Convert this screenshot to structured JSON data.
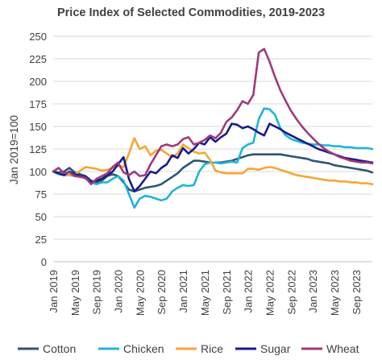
{
  "chart_data": {
    "type": "line",
    "title": "Price Index of Selected Commodities, 2019-2023",
    "ylabel": "Jan 2019=100",
    "xlabel": "",
    "ylim": [
      0,
      250
    ],
    "y_ticks": [
      "0",
      "25",
      "50",
      "75",
      "100",
      "125",
      "150",
      "175",
      "200",
      "225",
      "250"
    ],
    "x_ticks": [
      "Jan 2019",
      "May 2019",
      "Sep 2019",
      "Jan 2020",
      "May 2020",
      "Sep 2020",
      "Jan 2021",
      "May 2021",
      "Sep 2021",
      "Jan 2022",
      "May 2022",
      "Sep 2022",
      "Jan 2023",
      "May 2023",
      "Sep 2023"
    ],
    "x_tick_positions": [
      0,
      4,
      8,
      12,
      16,
      20,
      24,
      28,
      32,
      36,
      40,
      44,
      48,
      52,
      56
    ],
    "x_range": [
      0,
      59
    ],
    "grid": "horizontal",
    "legend_position": "bottom",
    "series": [
      {
        "name": "Cotton",
        "color": "#2E5573",
        "values": [
          100,
          99,
          100,
          104,
          99,
          97,
          95,
          90,
          88,
          90,
          95,
          97,
          95,
          88,
          80,
          78,
          80,
          82,
          83,
          84,
          86,
          90,
          94,
          98,
          104,
          108,
          112,
          112,
          111,
          110,
          110,
          110,
          111,
          112,
          114,
          116,
          118,
          119,
          119,
          119,
          119,
          119,
          119,
          118,
          117,
          116,
          115,
          114,
          112,
          111,
          110,
          109,
          107,
          106,
          105,
          104,
          103,
          102,
          101,
          99
        ]
      },
      {
        "name": "Chicken",
        "color": "#20B4D6",
        "values": [
          100,
          97,
          96,
          96,
          95,
          95,
          92,
          88,
          86,
          88,
          88,
          92,
          95,
          90,
          75,
          60,
          70,
          73,
          72,
          70,
          68,
          70,
          78,
          82,
          85,
          84,
          85,
          100,
          108,
          110,
          110,
          109,
          110,
          111,
          110,
          126,
          130,
          132,
          158,
          170,
          169,
          163,
          148,
          140,
          136,
          134,
          132,
          131,
          130,
          130,
          129,
          129,
          128,
          128,
          127,
          127,
          126,
          126,
          126,
          125
        ]
      },
      {
        "name": "Rice",
        "color": "#F5A636",
        "values": [
          100,
          98,
          97,
          96,
          97,
          101,
          105,
          104,
          103,
          101,
          102,
          104,
          106,
          105,
          120,
          137,
          125,
          128,
          118,
          123,
          124,
          120,
          116,
          120,
          130,
          126,
          122,
          120,
          121,
          113,
          101,
          99,
          98,
          98,
          98,
          98,
          103,
          103,
          102,
          104,
          105,
          104,
          102,
          100,
          98,
          96,
          95,
          94,
          93,
          92,
          91,
          90,
          90,
          89,
          89,
          88,
          88,
          87,
          87,
          86
        ]
      },
      {
        "name": "Sugar",
        "color": "#1A1A8E",
        "values": [
          100,
          98,
          96,
          100,
          97,
          95,
          94,
          88,
          90,
          92,
          96,
          100,
          108,
          116,
          92,
          78,
          84,
          92,
          100,
          98,
          104,
          108,
          118,
          115,
          126,
          120,
          125,
          132,
          130,
          138,
          133,
          138,
          142,
          153,
          152,
          148,
          150,
          147,
          143,
          140,
          153,
          150,
          147,
          143,
          140,
          137,
          134,
          131,
          128,
          125,
          123,
          121,
          119,
          117,
          115,
          114,
          113,
          112,
          111,
          110
        ]
      },
      {
        "name": "Wheat",
        "color": "#9E3B7A",
        "values": [
          100,
          104,
          98,
          99,
          95,
          94,
          93,
          86,
          92,
          95,
          98,
          105,
          110,
          99,
          96,
          100,
          95,
          96,
          108,
          118,
          128,
          130,
          128,
          130,
          136,
          138,
          130,
          132,
          135,
          140,
          137,
          143,
          155,
          160,
          168,
          178,
          175,
          185,
          232,
          236,
          222,
          205,
          190,
          178,
          167,
          158,
          150,
          143,
          137,
          131,
          126,
          122,
          119,
          116,
          114,
          112,
          111,
          110,
          110,
          109
        ]
      }
    ]
  }
}
